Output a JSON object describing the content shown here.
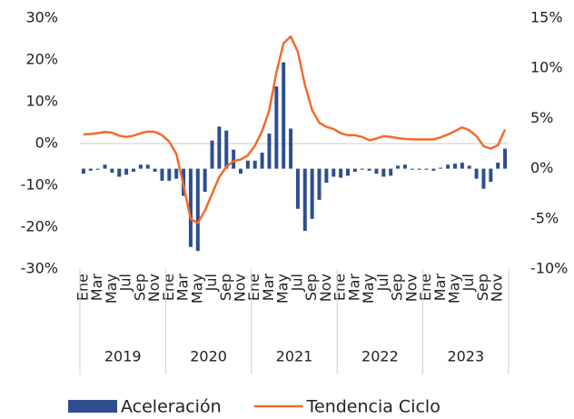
{
  "chart_data": {
    "type": "bar_line",
    "categories": [
      "Ene",
      null,
      "Mar",
      null,
      "May",
      null,
      "Jul",
      null,
      "Sep",
      null,
      "Nov",
      null,
      "Ene",
      null,
      "Mar",
      null,
      "May",
      null,
      "Jul",
      null,
      "Sep",
      null,
      "Nov",
      null,
      "Ene",
      null,
      "Mar",
      null,
      "May",
      null,
      "Jul",
      null,
      "Sep",
      null,
      "Nov",
      null,
      "Ene",
      null,
      "Mar",
      null,
      "May",
      null,
      "Jul",
      null,
      "Sep",
      null,
      "Nov",
      null,
      "Ene",
      null,
      "Mar",
      null,
      "May",
      null,
      "Jul",
      null,
      "Sep",
      null,
      "Nov",
      null
    ],
    "years": [
      "2019",
      "2020",
      "2021",
      "2022",
      "2023"
    ],
    "series": [
      {
        "name": "Aceleración",
        "type": "bar",
        "axis": "y2",
        "color": "#2e4e8f",
        "values": [
          -0.5,
          -0.2,
          -0.1,
          0.4,
          -0.4,
          -0.8,
          -0.6,
          -0.3,
          0.4,
          0.4,
          -0.3,
          -1.2,
          -1.2,
          -1.0,
          -2.7,
          -7.8,
          -8.2,
          -2.3,
          2.8,
          4.2,
          3.8,
          1.9,
          -0.5,
          0.8,
          0.8,
          1.6,
          3.5,
          8.2,
          10.6,
          4.0,
          -4.0,
          -6.2,
          -5.0,
          -3.1,
          -1.4,
          -0.8,
          -0.9,
          -0.7,
          -0.3,
          -0.1,
          -0.2,
          -0.5,
          -0.8,
          -0.7,
          0.3,
          0.4,
          -0.1,
          -0.1,
          -0.1,
          -0.2,
          0.1,
          0.4,
          0.5,
          0.6,
          0.3,
          -1.0,
          -2.0,
          -1.3,
          0.6,
          2.0
        ]
      },
      {
        "name": "Tendencia Ciclo",
        "type": "line",
        "axis": "y",
        "color": "#f26b2a",
        "values": [
          2.2,
          2.3,
          2.5,
          2.8,
          2.6,
          1.9,
          1.6,
          1.9,
          2.5,
          2.9,
          2.8,
          2.0,
          0.5,
          -2.5,
          -10,
          -18,
          -19,
          -16,
          -12,
          -8,
          -5.5,
          -4.2,
          -3.8,
          -2.8,
          -0.5,
          3,
          8,
          17,
          24,
          25.6,
          22,
          14,
          8,
          5,
          4,
          3.5,
          2.5,
          2.0,
          2.0,
          1.6,
          0.8,
          1.2,
          1.8,
          1.6,
          1.3,
          1.1,
          1.0,
          1.0,
          1.0,
          1.0,
          1.5,
          2.2,
          3.0,
          3.9,
          3.2,
          1.8,
          -0.6,
          -1.2,
          -0.4,
          3.4
        ]
      }
    ],
    "ylim": [
      -30,
      30
    ],
    "yticks": [
      {
        "value": -30,
        "label": "-30%"
      },
      {
        "value": -20,
        "label": "-20%"
      },
      {
        "value": -10,
        "label": "-10%"
      },
      {
        "value": 0,
        "label": "0%"
      },
      {
        "value": 10,
        "label": "10%"
      },
      {
        "value": 20,
        "label": "20%"
      },
      {
        "value": 30,
        "label": "30%"
      }
    ],
    "y2lim": [
      -10,
      15
    ],
    "y2ticks": [
      {
        "value": -10,
        "label": "-10%"
      },
      {
        "value": -5,
        "label": "-5%"
      },
      {
        "value": 0,
        "label": "0%"
      },
      {
        "value": 5,
        "label": "5%"
      },
      {
        "value": 10,
        "label": "10%"
      },
      {
        "value": 15,
        "label": "15%"
      }
    ]
  }
}
